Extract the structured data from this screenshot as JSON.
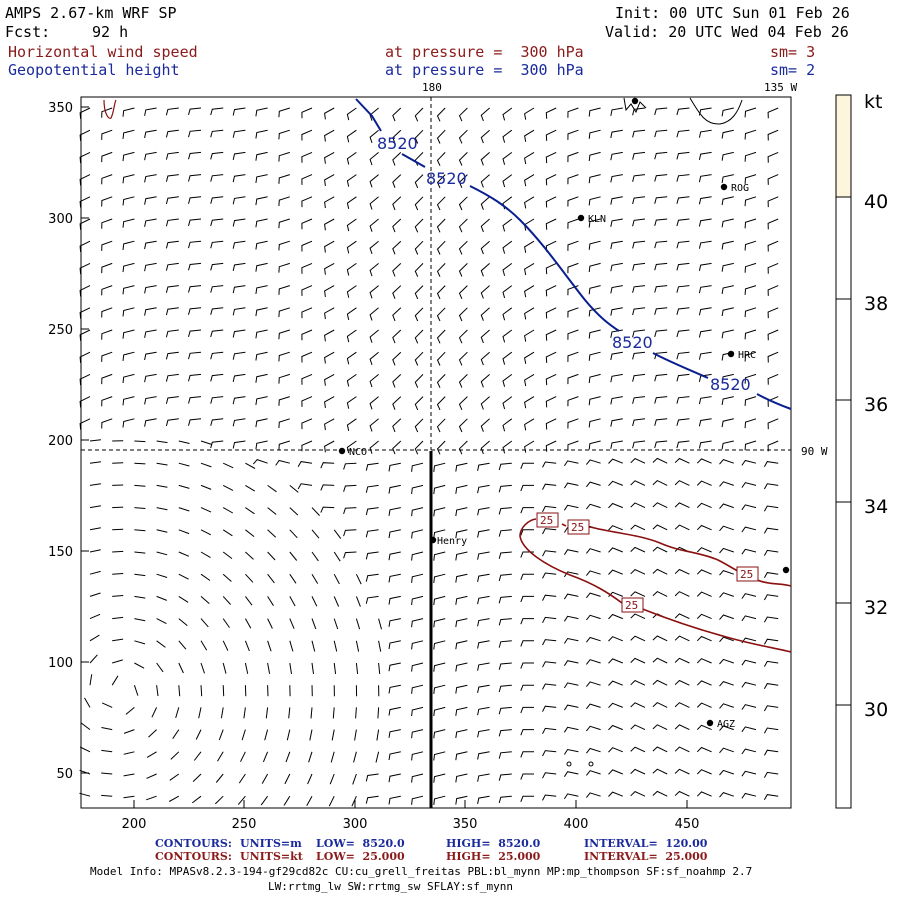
{
  "header": {
    "title_left": "AMPS 2.67-km WRF SP",
    "fcst_label": "Fcst:",
    "fcst_value": "92 h",
    "init": "Init: 00 UTC Sun 01 Feb 26",
    "valid": "Valid: 20 UTC Wed 04 Feb 26",
    "field1_name": "Horizontal wind speed",
    "field1_level": "at pressure =  300 hPa",
    "field1_sm": "sm= 3",
    "field2_name": "Geopotential height",
    "field2_level": "at pressure =  300 hPa",
    "field2_sm": "sm= 2"
  },
  "map": {
    "meridian_labels": [
      "180",
      "135 W",
      "90 W"
    ],
    "contour_labels_height": [
      "8520",
      "8520",
      "8520",
      "8520"
    ],
    "contour_labels_speed": [
      "25",
      "25",
      "25",
      "25"
    ],
    "stations": [
      "ROG",
      "KLN",
      "HRC",
      "NCO",
      "Henry",
      "AGZ"
    ],
    "x_ticks": [
      "200",
      "250",
      "300",
      "350",
      "400",
      "450"
    ],
    "y_ticks": [
      "350",
      "300",
      "250",
      "200",
      "150",
      "100",
      "50"
    ]
  },
  "colorbar": {
    "unit": "kt",
    "labels": [
      "40",
      "38",
      "36",
      "34",
      "32",
      "30"
    ],
    "top_fill_color": "#fdf6dc"
  },
  "footer": {
    "row1": {
      "label": "CONTOURS:",
      "units": "UNITS=m",
      "low": "LOW=  8520.0",
      "high": "HIGH=  8520.0",
      "interval": "INTERVAL=  120.00"
    },
    "row2": {
      "label": "CONTOURS:",
      "units": "UNITS=kt",
      "low": "LOW=  25.000",
      "high": "HIGH=  25.000",
      "interval": "INTERVAL=  25.000"
    },
    "model_info": "Model Info: MPASv8.2.3-194-gf29cd82c CU:cu_grell_freitas PBL:bl_mynn MP:mp_thompson SF:sf_noahmp 2.7",
    "model_info2": "LW:rrtmg_lw SW:rrtmg_sw SFLAY:sf_mynn"
  },
  "colors": {
    "height_contour": "#0a1f8f",
    "speed_contour": "#8b1010",
    "cross_section": "#000000"
  }
}
